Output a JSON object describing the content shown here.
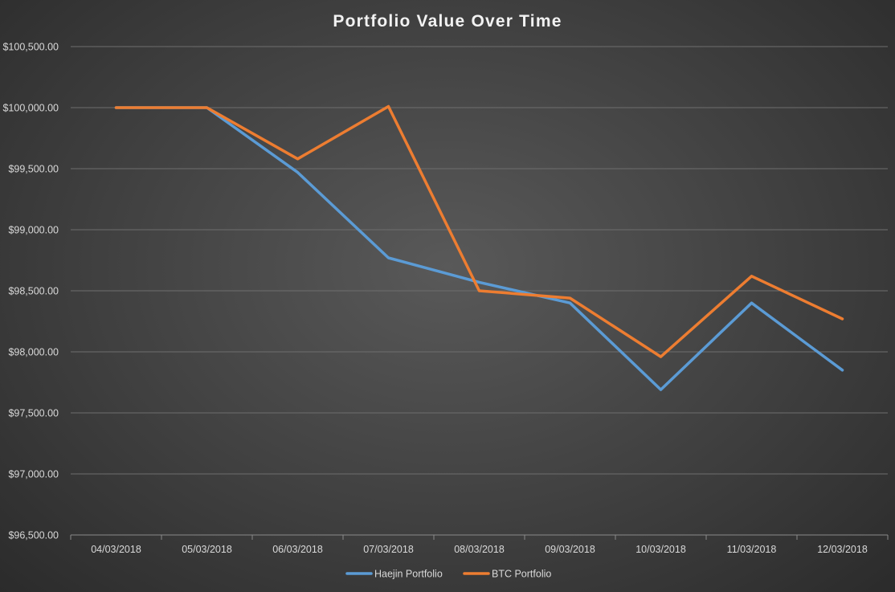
{
  "chart_data": {
    "type": "line",
    "title": "Portfolio Value Over Time",
    "categories": [
      "04/03/2018",
      "05/03/2018",
      "06/03/2018",
      "07/03/2018",
      "08/03/2018",
      "09/03/2018",
      "10/03/2018",
      "11/03/2018",
      "12/03/2018"
    ],
    "series": [
      {
        "name": "Haejin Portfolio",
        "color": "#5b9bd5",
        "values": [
          100000,
          100000,
          99470,
          98770,
          98570,
          98400,
          97690,
          98400,
          97850
        ]
      },
      {
        "name": "BTC Portfolio",
        "color": "#ed7d31",
        "values": [
          100000,
          100000,
          99580,
          100010,
          98500,
          98440,
          97960,
          98620,
          98270
        ]
      }
    ],
    "ylim": [
      96500,
      100500
    ],
    "yticks": [
      96500,
      97000,
      97500,
      98000,
      98500,
      99000,
      99500,
      100000,
      100500
    ],
    "ytick_labels": [
      "$96,500.00",
      "$97,000.00",
      "$97,500.00",
      "$98,000.00",
      "$98,500.00",
      "$99,000.00",
      "$99,500.00",
      "$100,000.00",
      "$100,500.00"
    ],
    "grid": true,
    "legend_position": "bottom"
  }
}
